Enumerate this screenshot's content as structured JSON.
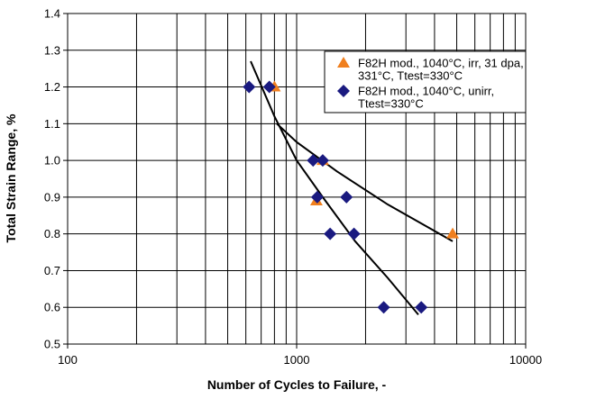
{
  "chart_data": {
    "type": "scatter",
    "xlabel": "Number of Cycles to Failure, -",
    "ylabel": "Total Strain Range, %",
    "log_x": true,
    "grid": true,
    "legend": "upper right",
    "xlim": [
      100,
      10000
    ],
    "xticks": [
      100,
      1000,
      10000
    ],
    "ylim": [
      0.5,
      1.4
    ],
    "yticks": [
      0.5,
      0.6,
      0.7,
      0.8,
      0.9,
      {
        "value": 1,
        "label": "1.0"
      },
      1.1,
      1.2,
      1.3,
      1.4
    ],
    "series": [
      {
        "name": "F82H mod., 1040°C, irr,  31 dpa,\n331°C, Ttest=330°C",
        "color": "#f07f1e",
        "marker": "triangle",
        "x": [
          800,
          1300,
          1220,
          4800
        ],
        "values": [
          1.2,
          1.0,
          0.89,
          0.8
        ]
      },
      {
        "name": "F82H mod., 1040°C, unirr,\nTtest=330°C",
        "color": "#1a1a80",
        "marker": "diamond",
        "x": [
          620,
          760,
          1180,
          1300,
          1230,
          1650,
          1400,
          1780,
          2400,
          3500
        ],
        "values": [
          1.2,
          1.2,
          1.0,
          1.0,
          0.9,
          0.9,
          0.8,
          0.8,
          0.6,
          0.6
        ]
      }
    ],
    "fit_lines": [
      {
        "color": "#000000",
        "x": [
          630,
          800,
          1000,
          1300,
          1800,
          2500,
          3400
        ],
        "values": [
          1.27,
          1.12,
          1.0,
          0.9,
          0.78,
          0.68,
          0.58
        ]
      },
      {
        "color": "#000000",
        "x": [
          820,
          1000,
          1500,
          2500,
          4800
        ],
        "values": [
          1.1,
          1.05,
          0.97,
          0.88,
          0.78
        ]
      }
    ]
  }
}
